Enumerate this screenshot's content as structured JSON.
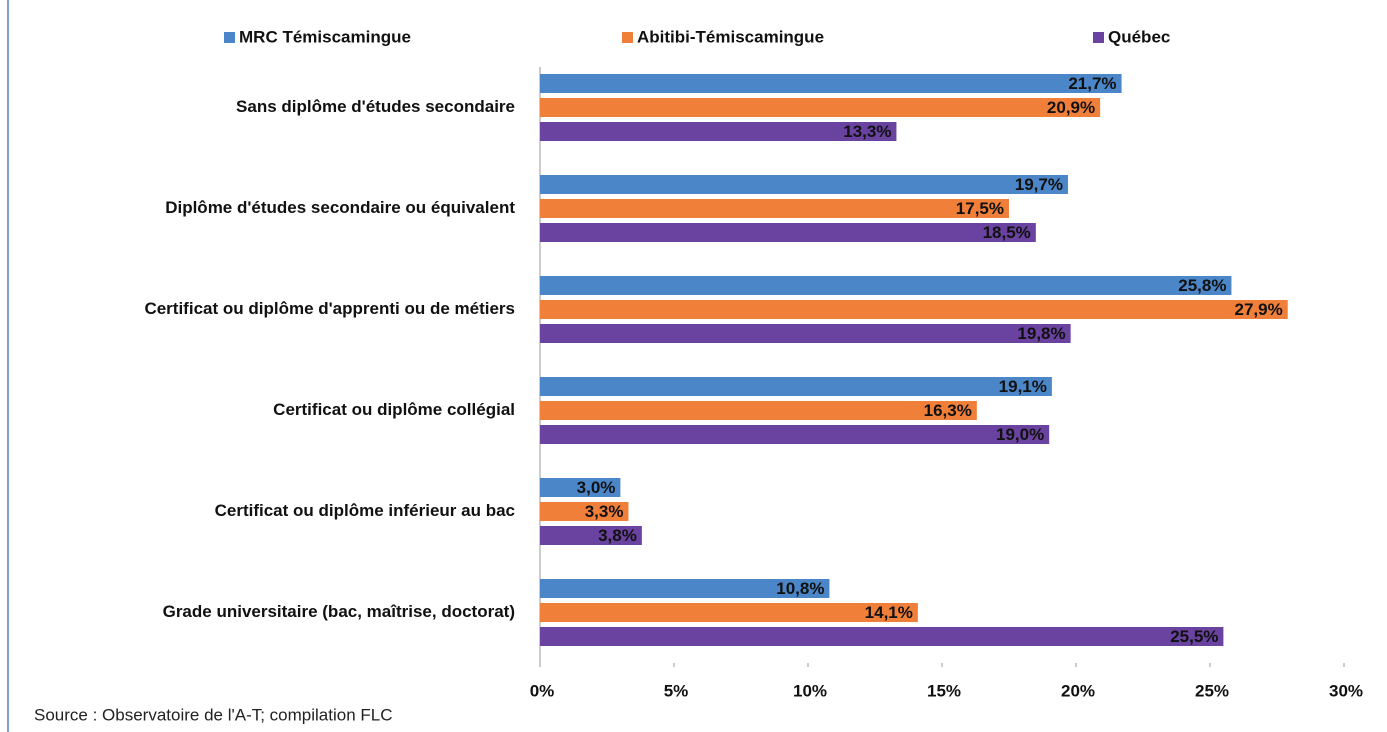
{
  "chart_data": {
    "type": "hbar",
    "categories": [
      "Sans diplôme d'études secondaire",
      "Diplôme d'études secondaire ou équivalent",
      "Certificat ou diplôme d'apprenti ou de métiers",
      "Certificat ou diplôme collégial",
      "Certificat ou diplôme inférieur au bac",
      "Grade universitaire (bac, maîtrise, doctorat)"
    ],
    "series": [
      {
        "name": "MRC Témiscamingue",
        "color": "#4a86c8",
        "values": [
          21.7,
          19.7,
          25.8,
          19.1,
          3.0,
          10.8
        ],
        "value_labels": [
          "21,7%",
          "19,7%",
          "25,8%",
          "19,1%",
          "3,0%",
          "10,8%"
        ]
      },
      {
        "name": "Abitibi-Témiscamingue",
        "color": "#f07f3a",
        "values": [
          20.9,
          17.5,
          27.9,
          16.3,
          3.3,
          14.1
        ],
        "value_labels": [
          "20,9%",
          "17,5%",
          "27,9%",
          "16,3%",
          "3,3%",
          "14,1%"
        ]
      },
      {
        "name": "Québec",
        "color": "#6a42a0",
        "values": [
          13.3,
          18.5,
          19.8,
          19.0,
          3.8,
          25.5
        ],
        "value_labels": [
          "13,3%",
          "18,5%",
          "19,8%",
          "19,0%",
          "3,8%",
          "25,5%"
        ]
      }
    ],
    "xlim": [
      0,
      30
    ],
    "xticks": [
      {
        "value": 0,
        "label": "0%"
      },
      {
        "value": 5,
        "label": "5%"
      },
      {
        "value": 10,
        "label": "10%"
      },
      {
        "value": 15,
        "label": "15%"
      },
      {
        "value": 20,
        "label": "20%"
      },
      {
        "value": 25,
        "label": "25%"
      },
      {
        "value": 30,
        "label": "30%"
      }
    ],
    "grid": false,
    "legend": "top",
    "source": "Source : Observatoire de l'A-T; compilation FLC"
  }
}
